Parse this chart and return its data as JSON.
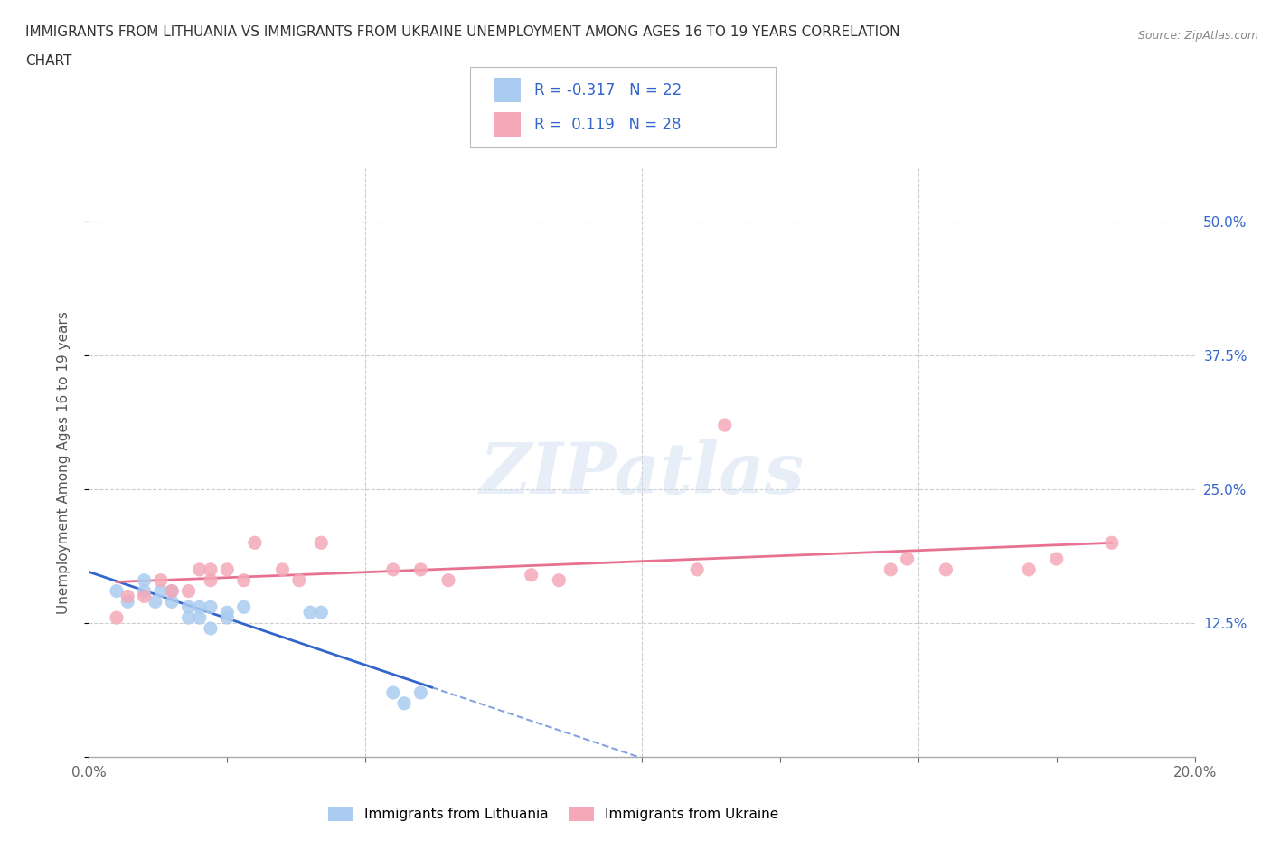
{
  "title_line1": "IMMIGRANTS FROM LITHUANIA VS IMMIGRANTS FROM UKRAINE UNEMPLOYMENT AMONG AGES 16 TO 19 YEARS CORRELATION",
  "title_line2": "CHART",
  "source_text": "Source: ZipAtlas.com",
  "ylabel": "Unemployment Among Ages 16 to 19 years",
  "xlim": [
    0.0,
    0.2
  ],
  "ylim": [
    0.0,
    0.55
  ],
  "yticks": [
    0.0,
    0.125,
    0.25,
    0.375,
    0.5
  ],
  "ytick_labels": [
    "",
    "12.5%",
    "25.0%",
    "37.5%",
    "50.0%"
  ],
  "xticks": [
    0.0,
    0.025,
    0.05,
    0.075,
    0.1,
    0.125,
    0.15,
    0.175,
    0.2
  ],
  "xtick_labels": [
    "0.0%",
    "",
    "",
    "",
    "",
    "",
    "",
    "",
    "20.0%"
  ],
  "grid_yticks": [
    0.125,
    0.25,
    0.375,
    0.5
  ],
  "grid_xticks": [
    0.05,
    0.1,
    0.15,
    0.2
  ],
  "grid_color": "#cccccc",
  "background_color": "#ffffff",
  "lithuania_color": "#aaccf0",
  "ukraine_color": "#f4a8b8",
  "lithuania_line_color": "#3366cc",
  "ukraine_line_color": "#e87090",
  "r_lithuania": -0.317,
  "n_lithuania": 22,
  "r_ukraine": 0.119,
  "n_ukraine": 28,
  "watermark": "ZIPatlas",
  "lithuania_x": [
    0.005,
    0.007,
    0.01,
    0.01,
    0.012,
    0.013,
    0.015,
    0.015,
    0.018,
    0.018,
    0.02,
    0.02,
    0.022,
    0.022,
    0.025,
    0.025,
    0.028,
    0.04,
    0.042,
    0.055,
    0.057,
    0.06
  ],
  "lithuania_y": [
    0.155,
    0.145,
    0.155,
    0.165,
    0.145,
    0.155,
    0.145,
    0.155,
    0.13,
    0.14,
    0.13,
    0.14,
    0.12,
    0.14,
    0.135,
    0.13,
    0.14,
    0.135,
    0.135,
    0.06,
    0.05,
    0.06
  ],
  "ukraine_x": [
    0.005,
    0.007,
    0.01,
    0.013,
    0.015,
    0.018,
    0.02,
    0.022,
    0.022,
    0.025,
    0.028,
    0.03,
    0.035,
    0.038,
    0.042,
    0.055,
    0.06,
    0.065,
    0.08,
    0.085,
    0.11,
    0.115,
    0.145,
    0.148,
    0.155,
    0.17,
    0.175,
    0.185
  ],
  "ukraine_y": [
    0.13,
    0.15,
    0.15,
    0.165,
    0.155,
    0.155,
    0.175,
    0.165,
    0.175,
    0.175,
    0.165,
    0.2,
    0.175,
    0.165,
    0.2,
    0.175,
    0.175,
    0.165,
    0.17,
    0.165,
    0.175,
    0.31,
    0.175,
    0.185,
    0.175,
    0.175,
    0.185,
    0.2
  ]
}
